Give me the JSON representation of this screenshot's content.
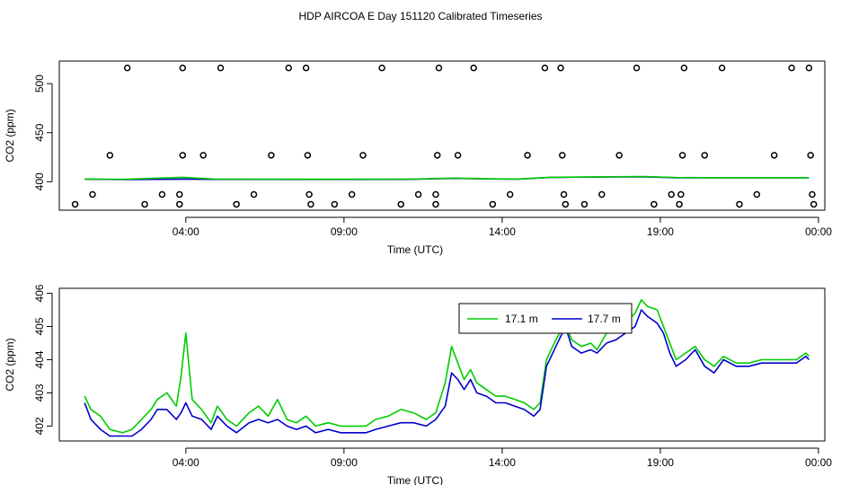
{
  "figure": {
    "title": "HDP AIRCOA E  Day 151120  Calibrated Timeseries"
  },
  "colors": {
    "series_green": "#00cc00",
    "series_blue": "#0000cc",
    "axis": "#000000"
  },
  "chart_data": [
    {
      "type": "scatter",
      "xlabel": "Time (UTC)",
      "ylabel": "CO2 (ppm)",
      "x_unit": "hours (UTC, 0 = 00:00 of day)",
      "xlim": [
        0.0,
        24.2
      ],
      "ylim": [
        371,
        523
      ],
      "x_ticks": [
        {
          "value": 4,
          "label": "04:00"
        },
        {
          "value": 9,
          "label": "09:00"
        },
        {
          "value": 14,
          "label": "14:00"
        },
        {
          "value": 19,
          "label": "19:00"
        },
        {
          "value": 24,
          "label": "00:00"
        }
      ],
      "y_ticks": [
        {
          "value": 400,
          "label": "400"
        },
        {
          "value": 450,
          "label": "450"
        },
        {
          "value": 500,
          "label": "500"
        }
      ],
      "points": [
        {
          "x": 0.5,
          "y": 377
        },
        {
          "x": 1.05,
          "y": 387
        },
        {
          "x": 1.6,
          "y": 427
        },
        {
          "x": 2.15,
          "y": 516
        },
        {
          "x": 2.7,
          "y": 377
        },
        {
          "x": 3.25,
          "y": 387
        },
        {
          "x": 3.8,
          "y": 377
        },
        {
          "x": 3.8,
          "y": 387
        },
        {
          "x": 3.9,
          "y": 427
        },
        {
          "x": 3.9,
          "y": 516
        },
        {
          "x": 4.55,
          "y": 427
        },
        {
          "x": 5.1,
          "y": 516
        },
        {
          "x": 5.6,
          "y": 377
        },
        {
          "x": 6.15,
          "y": 387
        },
        {
          "x": 6.7,
          "y": 427
        },
        {
          "x": 7.25,
          "y": 516
        },
        {
          "x": 7.8,
          "y": 516
        },
        {
          "x": 7.85,
          "y": 427
        },
        {
          "x": 7.9,
          "y": 387
        },
        {
          "x": 7.95,
          "y": 377
        },
        {
          "x": 8.7,
          "y": 377
        },
        {
          "x": 9.25,
          "y": 387
        },
        {
          "x": 9.6,
          "y": 427
        },
        {
          "x": 10.2,
          "y": 516
        },
        {
          "x": 10.8,
          "y": 377
        },
        {
          "x": 11.35,
          "y": 387
        },
        {
          "x": 11.9,
          "y": 377
        },
        {
          "x": 11.9,
          "y": 387
        },
        {
          "x": 11.95,
          "y": 427
        },
        {
          "x": 12.0,
          "y": 516
        },
        {
          "x": 12.6,
          "y": 427
        },
        {
          "x": 13.1,
          "y": 516
        },
        {
          "x": 13.7,
          "y": 377
        },
        {
          "x": 14.25,
          "y": 387
        },
        {
          "x": 14.8,
          "y": 427
        },
        {
          "x": 15.35,
          "y": 516
        },
        {
          "x": 15.85,
          "y": 516
        },
        {
          "x": 15.9,
          "y": 427
        },
        {
          "x": 15.95,
          "y": 387
        },
        {
          "x": 16.0,
          "y": 377
        },
        {
          "x": 16.6,
          "y": 377
        },
        {
          "x": 17.15,
          "y": 387
        },
        {
          "x": 17.7,
          "y": 427
        },
        {
          "x": 18.25,
          "y": 516
        },
        {
          "x": 18.8,
          "y": 377
        },
        {
          "x": 19.35,
          "y": 387
        },
        {
          "x": 19.6,
          "y": 377
        },
        {
          "x": 19.65,
          "y": 387
        },
        {
          "x": 19.7,
          "y": 427
        },
        {
          "x": 19.75,
          "y": 516
        },
        {
          "x": 20.4,
          "y": 427
        },
        {
          "x": 20.95,
          "y": 516
        },
        {
          "x": 21.5,
          "y": 377
        },
        {
          "x": 22.05,
          "y": 387
        },
        {
          "x": 22.6,
          "y": 427
        },
        {
          "x": 23.15,
          "y": 516
        },
        {
          "x": 23.7,
          "y": 516
        },
        {
          "x": 23.75,
          "y": 427
        },
        {
          "x": 23.8,
          "y": 387
        },
        {
          "x": 23.85,
          "y": 377
        }
      ],
      "series": [
        {
          "color": "#0000cc",
          "x": [
            0.8,
            2.0,
            4.0,
            5.0,
            8.0,
            11.0,
            12.5,
            13.5,
            14.5,
            15.5,
            17.0,
            18.5,
            19.5,
            21.0,
            23.7
          ],
          "values": [
            402.6,
            402.2,
            402.7,
            402.4,
            402.3,
            402.4,
            403.4,
            402.9,
            402.6,
            404.3,
            404.8,
            405.1,
            404.1,
            404.0,
            404.0
          ]
        },
        {
          "color": "#00cc00",
          "x": [
            0.8,
            2.0,
            3.9,
            5.0,
            8.0,
            11.0,
            12.5,
            13.5,
            14.5,
            15.5,
            17.0,
            18.5,
            19.5,
            21.0,
            23.7
          ],
          "values": [
            402.8,
            402.4,
            404.5,
            402.6,
            402.5,
            402.6,
            403.7,
            403.0,
            402.8,
            404.5,
            405.0,
            405.3,
            404.2,
            404.1,
            404.1
          ]
        }
      ]
    },
    {
      "type": "line",
      "xlabel": "Time (UTC)",
      "ylabel": "CO2 (ppm)",
      "x_unit": "hours (UTC, 0 = 00:00 of day)",
      "xlim": [
        0.0,
        24.2
      ],
      "ylim": [
        401.55,
        406.15
      ],
      "x_ticks": [
        {
          "value": 4,
          "label": "04:00"
        },
        {
          "value": 9,
          "label": "09:00"
        },
        {
          "value": 14,
          "label": "14:00"
        },
        {
          "value": 19,
          "label": "19:00"
        },
        {
          "value": 24,
          "label": "00:00"
        }
      ],
      "y_ticks": [
        {
          "value": 402,
          "label": "402"
        },
        {
          "value": 403,
          "label": "403"
        },
        {
          "value": 404,
          "label": "404"
        },
        {
          "value": 405,
          "label": "405"
        },
        {
          "value": 406,
          "label": "406"
        }
      ],
      "legend": {
        "position": "top-center",
        "entries": [
          "17.1 m",
          "17.7 m"
        ]
      },
      "series": [
        {
          "name": "17.1 m",
          "color": "#00cc00",
          "x": [
            0.8,
            1.0,
            1.3,
            1.6,
            2.0,
            2.3,
            2.6,
            2.9,
            3.1,
            3.4,
            3.7,
            3.85,
            4.0,
            4.2,
            4.5,
            4.8,
            5.0,
            5.3,
            5.6,
            6.0,
            6.3,
            6.6,
            6.9,
            7.2,
            7.5,
            7.8,
            8.1,
            8.5,
            8.9,
            9.3,
            9.7,
            10.0,
            10.4,
            10.8,
            11.2,
            11.6,
            11.9,
            12.2,
            12.4,
            12.6,
            12.8,
            13.0,
            13.2,
            13.5,
            13.8,
            14.1,
            14.4,
            14.7,
            15.0,
            15.2,
            15.4,
            15.7,
            16.0,
            16.2,
            16.5,
            16.8,
            17.0,
            17.3,
            17.6,
            17.9,
            18.2,
            18.4,
            18.6,
            18.9,
            19.1,
            19.3,
            19.5,
            19.8,
            20.1,
            20.4,
            20.7,
            21.0,
            21.4,
            21.8,
            22.2,
            22.6,
            23.0,
            23.3,
            23.6,
            23.7
          ],
          "values": [
            402.9,
            402.5,
            402.3,
            401.9,
            401.8,
            401.9,
            402.2,
            402.5,
            402.8,
            403.0,
            402.6,
            403.5,
            404.8,
            402.8,
            402.5,
            402.1,
            402.6,
            402.2,
            402.0,
            402.4,
            402.6,
            402.3,
            402.8,
            402.2,
            402.1,
            402.3,
            402.0,
            402.1,
            402.0,
            402.0,
            402.0,
            402.2,
            402.3,
            402.5,
            402.4,
            402.2,
            402.4,
            403.3,
            404.4,
            403.9,
            403.4,
            403.7,
            403.3,
            403.1,
            402.9,
            402.9,
            402.8,
            402.7,
            402.5,
            402.7,
            404.0,
            404.6,
            405.1,
            404.6,
            404.4,
            404.5,
            404.3,
            404.8,
            404.9,
            405.1,
            405.4,
            405.8,
            405.6,
            405.5,
            405.0,
            404.5,
            404.0,
            404.2,
            404.4,
            404.0,
            403.8,
            404.1,
            403.9,
            403.9,
            404.0,
            404.0,
            404.0,
            404.0,
            404.2,
            404.1
          ]
        },
        {
          "name": "17.7 m",
          "color": "#0000cc",
          "x": [
            0.8,
            1.0,
            1.3,
            1.6,
            2.0,
            2.3,
            2.6,
            2.9,
            3.1,
            3.4,
            3.7,
            3.85,
            4.0,
            4.2,
            4.5,
            4.8,
            5.0,
            5.3,
            5.6,
            6.0,
            6.3,
            6.6,
            6.9,
            7.2,
            7.5,
            7.8,
            8.1,
            8.5,
            8.9,
            9.3,
            9.7,
            10.0,
            10.4,
            10.8,
            11.2,
            11.6,
            11.9,
            12.2,
            12.4,
            12.6,
            12.8,
            13.0,
            13.2,
            13.5,
            13.8,
            14.1,
            14.4,
            14.7,
            15.0,
            15.2,
            15.4,
            15.7,
            16.0,
            16.2,
            16.5,
            16.8,
            17.0,
            17.3,
            17.6,
            17.9,
            18.2,
            18.4,
            18.6,
            18.9,
            19.1,
            19.3,
            19.5,
            19.8,
            20.1,
            20.4,
            20.7,
            21.0,
            21.4,
            21.8,
            22.2,
            22.6,
            23.0,
            23.3,
            23.6,
            23.7
          ],
          "values": [
            402.7,
            402.2,
            401.9,
            401.7,
            401.7,
            401.7,
            401.9,
            402.2,
            402.5,
            402.5,
            402.2,
            402.4,
            402.7,
            402.3,
            402.2,
            401.9,
            402.3,
            402.0,
            401.8,
            402.1,
            402.2,
            402.1,
            402.2,
            402.0,
            401.9,
            402.0,
            401.8,
            401.9,
            401.8,
            401.8,
            401.8,
            401.9,
            402.0,
            402.1,
            402.1,
            402.0,
            402.2,
            402.6,
            403.6,
            403.4,
            403.1,
            403.4,
            403.0,
            402.9,
            402.7,
            402.7,
            402.6,
            402.5,
            402.3,
            402.5,
            403.8,
            404.4,
            405.0,
            404.4,
            404.2,
            404.3,
            404.2,
            404.5,
            404.6,
            404.8,
            405.0,
            405.5,
            405.3,
            405.1,
            404.8,
            404.2,
            403.8,
            404.0,
            404.3,
            403.8,
            403.6,
            404.0,
            403.8,
            403.8,
            403.9,
            403.9,
            403.9,
            403.9,
            404.1,
            404.0
          ]
        }
      ]
    }
  ]
}
